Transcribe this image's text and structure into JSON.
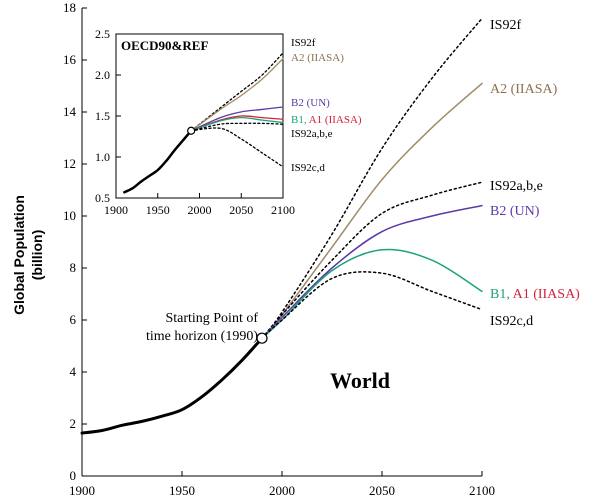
{
  "chart_data": [
    {
      "type": "line",
      "title": "World",
      "ylabel": "Global Population (billion)",
      "xlim": [
        1900,
        2100
      ],
      "ylim": [
        0,
        18
      ],
      "xticks": [
        "1900",
        "1950",
        "2000",
        "2050",
        "2100"
      ],
      "yticks": [
        "0",
        "2",
        "4",
        "6",
        "8",
        "10",
        "12",
        "14",
        "16",
        "18"
      ],
      "annotation": "Starting Point of time horizon (1990)",
      "marker_point": {
        "x": 1990,
        "y": 5.3
      },
      "series": [
        {
          "id": "historical",
          "name": "",
          "style": "solid",
          "color": "#000000",
          "width": 3,
          "x": [
            1900,
            1910,
            1920,
            1930,
            1940,
            1950,
            1960,
            1970,
            1980,
            1990
          ],
          "y": [
            1.65,
            1.75,
            1.95,
            2.1,
            2.3,
            2.55,
            3.05,
            3.7,
            4.45,
            5.3
          ]
        },
        {
          "id": "is92f",
          "name": "IS92f",
          "style": "dotted",
          "color": "#000000",
          "x": [
            1990,
            2000,
            2025,
            2050,
            2075,
            2100
          ],
          "y": [
            5.3,
            6.3,
            9.3,
            12.6,
            15.3,
            17.6
          ]
        },
        {
          "id": "a2",
          "name": "A2 (IIASA)",
          "style": "solid",
          "color": "#a08a68",
          "x": [
            1990,
            2000,
            2025,
            2050,
            2075,
            2100
          ],
          "y": [
            5.3,
            6.2,
            8.8,
            11.4,
            13.4,
            15.1
          ]
        },
        {
          "id": "is92abe",
          "name": "IS92a,b,e",
          "style": "dotted",
          "color": "#000000",
          "x": [
            1990,
            2000,
            2025,
            2050,
            2075,
            2100
          ],
          "y": [
            5.3,
            6.2,
            8.3,
            10.1,
            10.8,
            11.3
          ]
        },
        {
          "id": "b2",
          "name": "B2 (UN)",
          "style": "solid",
          "color": "#5b3aa5",
          "x": [
            1990,
            2000,
            2025,
            2050,
            2075,
            2100
          ],
          "y": [
            5.3,
            6.1,
            8.0,
            9.4,
            10.0,
            10.4
          ]
        },
        {
          "id": "b1a1",
          "name": "B1, A1 (IIASA)",
          "style": "solid",
          "color": "#1aa37a",
          "x": [
            1990,
            2000,
            2025,
            2050,
            2075,
            2100
          ],
          "y": [
            5.3,
            6.0,
            7.9,
            8.7,
            8.3,
            7.1
          ]
        },
        {
          "id": "is92cd",
          "name": "IS92c,d",
          "style": "dotted",
          "color": "#000000",
          "x": [
            1990,
            2000,
            2025,
            2050,
            2075,
            2100
          ],
          "y": [
            5.3,
            6.0,
            7.6,
            7.8,
            7.1,
            6.4
          ]
        }
      ],
      "legend_labels": [
        {
          "series": "is92f",
          "parts": [
            {
              "text": "IS92f",
              "color": "#000000"
            }
          ]
        },
        {
          "series": "a2",
          "parts": [
            {
              "text": "A2 (IIASA)",
              "color": "#8a7050"
            }
          ]
        },
        {
          "series": "is92abe",
          "parts": [
            {
              "text": "IS92a,b,e",
              "color": "#000000"
            }
          ]
        },
        {
          "series": "b2",
          "parts": [
            {
              "text": "B2 (UN)",
              "color": "#5b3aa5"
            }
          ]
        },
        {
          "series": "b1a1",
          "parts": [
            {
              "text": "B1, ",
              "color": "#1aa37a"
            },
            {
              "text": "A1 (IIASA)",
              "color": "#d4203a"
            }
          ]
        },
        {
          "series": "is92cd",
          "parts": [
            {
              "text": "IS92c,d",
              "color": "#000000"
            }
          ]
        }
      ]
    },
    {
      "type": "line",
      "title": "OECD90&REF",
      "xlim": [
        1900,
        2100
      ],
      "ylim": [
        0.5,
        2.5
      ],
      "xticks": [
        "1900",
        "1950",
        "2000",
        "2050",
        "2100"
      ],
      "yticks": [
        "0.5",
        "1.0",
        "1.5",
        "2.0",
        "2.5"
      ],
      "marker_point": {
        "x": 1990,
        "y": 1.32
      },
      "series": [
        {
          "id": "i_hist",
          "name": "",
          "style": "solid",
          "color": "#000000",
          "width": 2.5,
          "x": [
            1910,
            1920,
            1930,
            1940,
            1950,
            1960,
            1970,
            1980,
            1990
          ],
          "y": [
            0.57,
            0.62,
            0.7,
            0.77,
            0.84,
            0.95,
            1.08,
            1.2,
            1.32
          ]
        },
        {
          "id": "i_is92f",
          "name": "IS92f",
          "style": "dotted",
          "color": "#000000",
          "x": [
            1990,
            2025,
            2050,
            2075,
            2100
          ],
          "y": [
            1.32,
            1.6,
            1.8,
            2.0,
            2.27
          ]
        },
        {
          "id": "i_a2",
          "name": "A2 (IIASA)",
          "style": "solid",
          "color": "#a08a68",
          "x": [
            1990,
            2025,
            2050,
            2075,
            2100
          ],
          "y": [
            1.32,
            1.58,
            1.75,
            1.95,
            2.2
          ]
        },
        {
          "id": "i_b2",
          "name": "B2 (UN)",
          "style": "solid",
          "color": "#5b3aa5",
          "x": [
            1990,
            2025,
            2050,
            2075,
            2100
          ],
          "y": [
            1.32,
            1.48,
            1.55,
            1.58,
            1.61
          ]
        },
        {
          "id": "i_a1",
          "name": "A1 (IIASA)",
          "style": "solid",
          "color": "#d4203a",
          "x": [
            1990,
            2025,
            2050,
            2075,
            2100
          ],
          "y": [
            1.32,
            1.45,
            1.5,
            1.48,
            1.46
          ]
        },
        {
          "id": "i_b1",
          "name": "B1",
          "style": "solid",
          "color": "#1aa37a",
          "x": [
            1990,
            2025,
            2050,
            2075,
            2100
          ],
          "y": [
            1.32,
            1.44,
            1.48,
            1.45,
            1.42
          ]
        },
        {
          "id": "i_is92abe",
          "name": "IS92a,b,e",
          "style": "dotted",
          "color": "#000000",
          "x": [
            1990,
            2025,
            2050,
            2075,
            2100
          ],
          "y": [
            1.32,
            1.4,
            1.41,
            1.41,
            1.4
          ]
        },
        {
          "id": "i_is92cd",
          "name": "IS92c,d",
          "style": "dotted",
          "color": "#000000",
          "x": [
            1990,
            2025,
            2050,
            2075,
            2100
          ],
          "y": [
            1.32,
            1.35,
            1.22,
            1.05,
            0.88
          ]
        }
      ],
      "legend_labels": [
        {
          "series": "i_is92f",
          "parts": [
            {
              "text": "IS92f",
              "color": "#000000"
            }
          ]
        },
        {
          "series": "i_a2",
          "parts": [
            {
              "text": "A2 (IIASA)",
              "color": "#8a7050"
            }
          ]
        },
        {
          "series": "i_b2",
          "parts": [
            {
              "text": "B2 (UN)",
              "color": "#5b3aa5"
            }
          ]
        },
        {
          "series": "i_b1a1",
          "parts": [
            {
              "text": "B1, ",
              "color": "#1aa37a"
            },
            {
              "text": "A1 (IIASA)",
              "color": "#d4203a"
            }
          ]
        },
        {
          "series": "i_is92abe",
          "parts": [
            {
              "text": "IS92a,b,e",
              "color": "#000000"
            }
          ]
        },
        {
          "series": "i_is92cd",
          "parts": [
            {
              "text": "IS92c,d",
              "color": "#000000"
            }
          ]
        }
      ]
    }
  ]
}
